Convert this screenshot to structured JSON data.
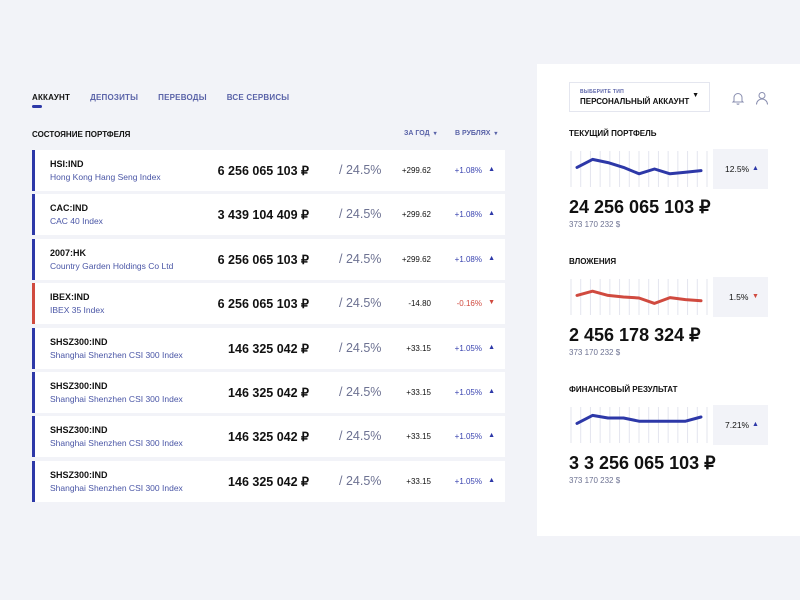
{
  "tabs": [
    {
      "label": "АККАУНТ",
      "active": true
    },
    {
      "label": "ДЕПОЗИТЫ",
      "active": false
    },
    {
      "label": "ПЕРЕВОДЫ",
      "active": false
    },
    {
      "label": "ВСЕ СЕРВИСЫ",
      "active": false
    }
  ],
  "portfolio": {
    "title": "СОСТОЯНИЕ ПОРТФЕЛЯ",
    "filter_period": "ЗА ГОД",
    "filter_currency": "В РУБЛЯХ",
    "rows": [
      {
        "ticker": "HSI:IND",
        "name": "Hong Kong Hang Seng Index",
        "amount": "6 256 065 103 ₽",
        "pct": "/ 24.5%",
        "delta": "+299.62",
        "change": "+1.08%",
        "trend": "up"
      },
      {
        "ticker": "CAC:IND",
        "name": "CAC 40 Index",
        "amount": "3 439 104 409 ₽",
        "pct": "/ 24.5%",
        "delta": "+299.62",
        "change": "+1.08%",
        "trend": "up"
      },
      {
        "ticker": "2007:HK",
        "name": "Country Garden Holdings Co Ltd",
        "amount": "6 256 065 103 ₽",
        "pct": "/ 24.5%",
        "delta": "+299.62",
        "change": "+1.08%",
        "trend": "up"
      },
      {
        "ticker": "IBEX:IND",
        "name": "IBEX 35 Index",
        "amount": "6 256 065 103 ₽",
        "pct": "/ 24.5%",
        "delta": "-14.80",
        "change": "-0.16%",
        "trend": "down"
      },
      {
        "ticker": "SHSZ300:IND",
        "name": "Shanghai Shenzhen CSI 300 Index",
        "amount": "146 325 042 ₽",
        "pct": "/ 24.5%",
        "delta": "+33.15",
        "change": "+1.05%",
        "trend": "up"
      },
      {
        "ticker": "SHSZ300:IND",
        "name": "Shanghai Shenzhen CSI 300 Index",
        "amount": "146 325 042 ₽",
        "pct": "/ 24.5%",
        "delta": "+33.15",
        "change": "+1.05%",
        "trend": "up"
      },
      {
        "ticker": "SHSZ300:IND",
        "name": "Shanghai Shenzhen CSI 300 Index",
        "amount": "146 325 042 ₽",
        "pct": "/ 24.5%",
        "delta": "+33.15",
        "change": "+1.05%",
        "trend": "up"
      },
      {
        "ticker": "SHSZ300:IND",
        "name": "Shanghai Shenzhen CSI 300 Index",
        "amount": "146 325 042 ₽",
        "pct": "/ 24.5%",
        "delta": "+33.15",
        "change": "+1.05%",
        "trend": "up"
      }
    ]
  },
  "side": {
    "select_label": "ВЫБЕРИТЕ ТИП",
    "select_value": "ПЕРСОНАЛЬНЫЙ АККАУНТ",
    "icons": {
      "notifications": "bell-icon",
      "profile": "user-icon"
    },
    "metrics": [
      {
        "title": "ТЕКУЩИЙ ПОРТФЕЛЬ",
        "change": "12.5%",
        "trend": "up",
        "value": "24 256 065 103 ₽",
        "sub": "373 170 232 $",
        "color": "#2d38a8",
        "points": [
          0.55,
          0.8,
          0.7,
          0.55,
          0.35,
          0.5,
          0.35,
          0.4,
          0.45
        ]
      },
      {
        "title": "ВЛОЖЕНИЯ",
        "change": "1.5%",
        "trend": "down",
        "value": "2 456 178 324 ₽",
        "sub": "373 170 232 $",
        "color": "#d04a3f",
        "points": [
          0.55,
          0.68,
          0.55,
          0.5,
          0.47,
          0.3,
          0.48,
          0.42,
          0.38
        ]
      },
      {
        "title": "ФИНАНСОВЫЙ РЕЗУЛЬТАТ",
        "change": "7.21%",
        "trend": "up",
        "value": "3 3 256 065 103 ₽",
        "sub": "373 170 232 $",
        "color": "#2d38a8",
        "points": [
          0.55,
          0.8,
          0.72,
          0.72,
          0.62,
          0.62,
          0.62,
          0.62,
          0.75
        ]
      }
    ]
  },
  "colors": {
    "accent": "#2d38a8",
    "negative": "#d04a3f"
  }
}
